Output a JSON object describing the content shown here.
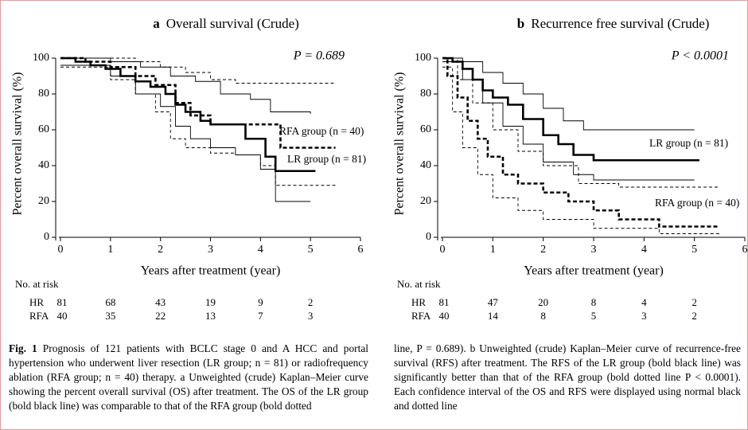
{
  "chart_data": [
    {
      "type": "line",
      "step": true,
      "panel": "a",
      "title": "Overall survival (Crude)",
      "annotation": "P = 0.689",
      "x_label": "Years after treatment (year)",
      "y_label": "Percent overall survival (%)",
      "xlim": [
        0,
        6
      ],
      "ylim": [
        0,
        100
      ],
      "xticks": [
        0,
        1,
        2,
        3,
        4,
        5,
        6
      ],
      "yticks": [
        0,
        20,
        40,
        60,
        80,
        100
      ],
      "series": [
        {
          "name": "LR group (n = 81)",
          "color": "#000000",
          "dashed": false,
          "width": 2.6,
          "x": [
            0,
            0.3,
            0.6,
            0.9,
            1.2,
            1.5,
            1.8,
            2.1,
            2.3,
            2.5,
            2.8,
            3.0,
            3.7,
            4.1,
            4.3,
            5.1
          ],
          "values": [
            100,
            98,
            96,
            94,
            90,
            87,
            84,
            80,
            74,
            70,
            65,
            63,
            55,
            45,
            37,
            37
          ]
        },
        {
          "name": "RFA group (n = 40)",
          "color": "#000000",
          "dashed": true,
          "width": 2.6,
          "x": [
            0,
            0.5,
            1.0,
            1.5,
            1.9,
            2.3,
            2.6,
            3.0,
            4.4,
            5.5
          ],
          "values": [
            100,
            98,
            95,
            90,
            85,
            75,
            68,
            63,
            50,
            50
          ]
        },
        {
          "color": "#000000",
          "dashed": false,
          "width": 0.9,
          "x": [
            0,
            1,
            1.6,
            2.2,
            2.7,
            3.2,
            3.8,
            4.2,
            5.0
          ],
          "values": [
            100,
            98,
            95,
            90,
            87,
            80,
            77,
            70,
            69
          ]
        },
        {
          "color": "#000000",
          "dashed": false,
          "width": 0.9,
          "x": [
            0,
            1,
            1.5,
            2.0,
            2.3,
            2.6,
            3.0,
            3.5,
            4.0,
            4.3,
            5.0
          ],
          "values": [
            96,
            90,
            80,
            73,
            62,
            55,
            50,
            46,
            38,
            20,
            20
          ]
        },
        {
          "color": "#000000",
          "dashed": true,
          "width": 0.9,
          "x": [
            0,
            1.5,
            2,
            2.5,
            3,
            3.5,
            5.5
          ],
          "values": [
            100,
            98,
            95,
            92,
            88,
            86,
            86
          ]
        },
        {
          "color": "#000000",
          "dashed": true,
          "width": 0.9,
          "x": [
            0,
            1,
            1.5,
            1.9,
            2.2,
            2.5,
            3,
            3.5,
            4,
            4.3,
            5.5
          ],
          "values": [
            95,
            88,
            80,
            70,
            55,
            50,
            47,
            46,
            40,
            29,
            29
          ]
        }
      ],
      "risk_table": {
        "title": "No. at risk",
        "rows": [
          {
            "label": "HR",
            "values": [
              81,
              68,
              43,
              19,
              9,
              2
            ]
          },
          {
            "label": "RFA",
            "values": [
              40,
              35,
              22,
              13,
              7,
              3
            ]
          }
        ]
      }
    },
    {
      "type": "line",
      "step": true,
      "panel": "b",
      "title": "Recurrence free survival (Crude)",
      "annotation": "P < 0.0001",
      "x_label": "Years after treatment (year)",
      "y_label": "Percent overall survival (%)",
      "xlim": [
        0,
        6
      ],
      "ylim": [
        0,
        100
      ],
      "xticks": [
        0,
        1,
        2,
        3,
        4,
        5,
        6
      ],
      "yticks": [
        0,
        20,
        40,
        60,
        80,
        100
      ],
      "series": [
        {
          "name": "LR group (n = 81)",
          "color": "#000000",
          "dashed": false,
          "width": 2.6,
          "x": [
            0,
            0.2,
            0.4,
            0.6,
            0.8,
            1.0,
            1.3,
            1.6,
            2.0,
            2.3,
            2.6,
            3.0,
            5.1
          ],
          "values": [
            100,
            98,
            94,
            88,
            82,
            78,
            74,
            66,
            57,
            52,
            46,
            43,
            43
          ]
        },
        {
          "name": "RFA group (n = 40)",
          "color": "#000000",
          "dashed": true,
          "width": 2.6,
          "x": [
            0,
            0.1,
            0.3,
            0.5,
            0.7,
            0.9,
            1.2,
            1.5,
            2.0,
            2.5,
            3.0,
            3.5,
            4.3,
            5.5
          ],
          "values": [
            100,
            90,
            78,
            65,
            55,
            45,
            35,
            30,
            25,
            20,
            15,
            10,
            6,
            6
          ]
        },
        {
          "color": "#000000",
          "dashed": false,
          "width": 0.9,
          "x": [
            0,
            0.4,
            0.8,
            1.2,
            1.6,
            2.0,
            2.4,
            2.8,
            5.0
          ],
          "values": [
            100,
            98,
            92,
            86,
            80,
            72,
            65,
            60,
            60
          ]
        },
        {
          "color": "#000000",
          "dashed": false,
          "width": 0.9,
          "x": [
            0,
            0.4,
            0.8,
            1.2,
            1.6,
            2.0,
            2.6,
            3.0,
            5.0
          ],
          "values": [
            98,
            88,
            75,
            62,
            52,
            42,
            35,
            32,
            32
          ]
        },
        {
          "color": "#000000",
          "dashed": true,
          "width": 0.9,
          "x": [
            0,
            0.3,
            0.6,
            1.0,
            1.5,
            2.0,
            2.7,
            3.5,
            5.5
          ],
          "values": [
            100,
            88,
            75,
            60,
            48,
            40,
            30,
            28,
            28
          ]
        },
        {
          "color": "#000000",
          "dashed": true,
          "width": 0.9,
          "x": [
            0,
            0.2,
            0.4,
            0.7,
            1.0,
            1.5,
            2.0,
            3.0,
            4.3,
            5.5
          ],
          "values": [
            95,
            70,
            50,
            35,
            22,
            15,
            10,
            5,
            2,
            2
          ]
        }
      ],
      "risk_table": {
        "title": "No. at risk",
        "rows": [
          {
            "label": "HR",
            "values": [
              81,
              47,
              20,
              8,
              4,
              2
            ]
          },
          {
            "label": "RFA",
            "values": [
              40,
              14,
              8,
              5,
              3,
              2
            ]
          }
        ]
      }
    }
  ],
  "caption": {
    "label": "Fig. 1",
    "left": "Prognosis of 121 patients with BCLC stage 0 and A HCC and portal hypertension who underwent liver resection (LR group; n = 81) or radiofrequency ablation (RFA group; n = 40) therapy. a Unweighted (crude) Kaplan–Meier curve showing the percent overall survival (OS) after treatment. The OS of the LR group (bold black line) was comparable to that of the RFA group (bold dotted",
    "right": "line, P = 0.689). b Unweighted (crude) Kaplan–Meier curve of recurrence-free survival (RFS) after treatment. The RFS of the LR group (bold black line) was significantly better than that of the RFA group (bold dotted line P < 0.0001). Each confidence interval of the OS and RFS were displayed using normal black and dotted line"
  }
}
